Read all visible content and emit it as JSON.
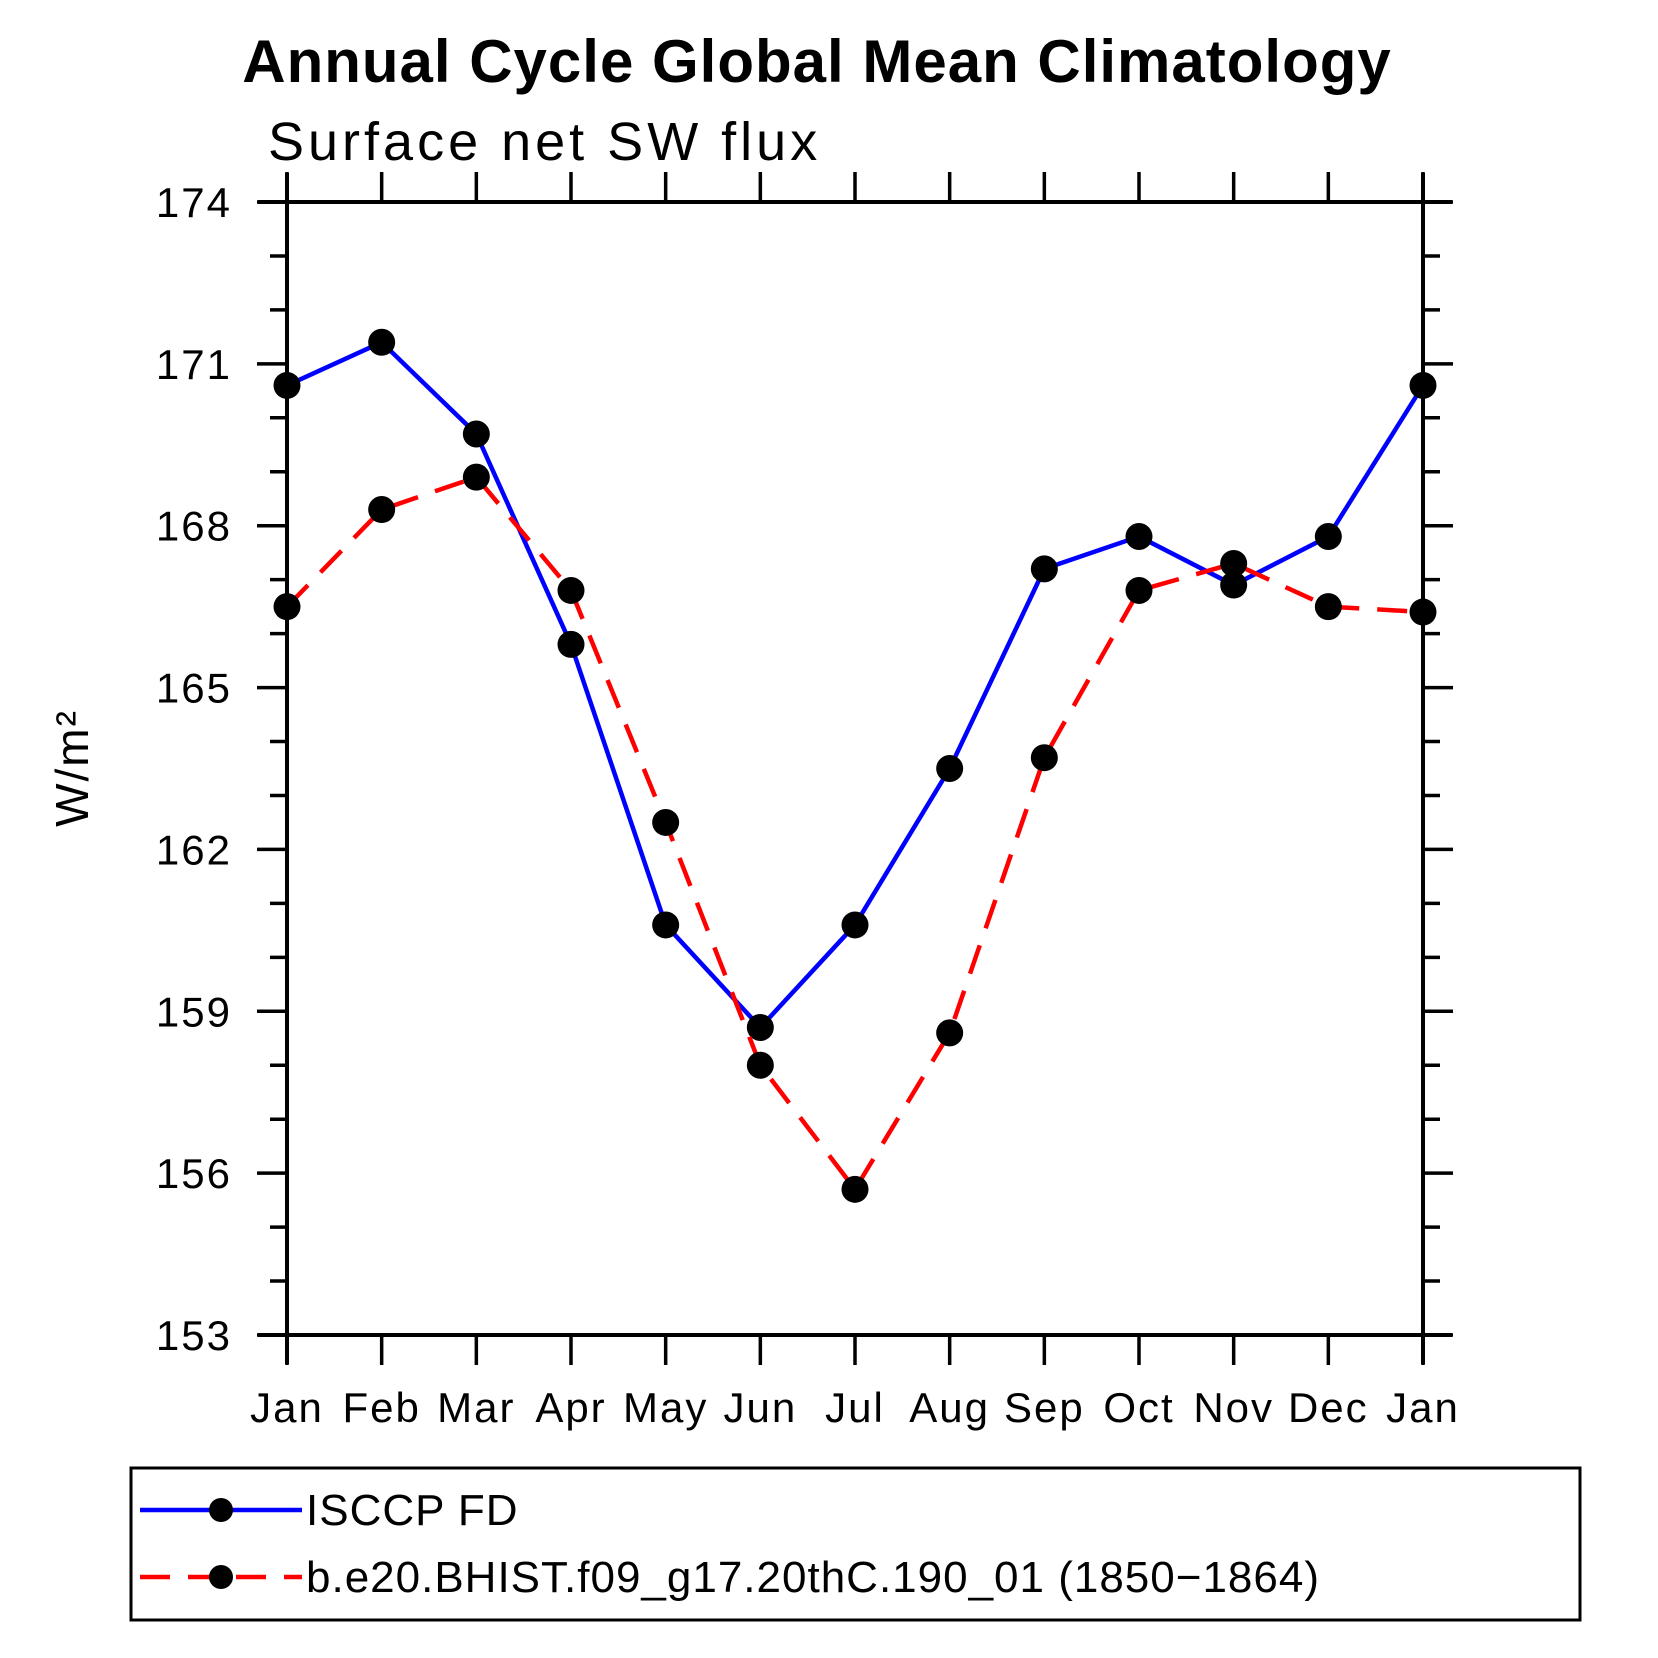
{
  "title": "Annual Cycle Global Mean Climatology",
  "subtitle": "Surface net SW flux",
  "chart_data": {
    "type": "line",
    "title": "Annual Cycle Global Mean Climatology",
    "subtitle": "Surface net SW flux",
    "xlabel": "",
    "ylabel": "W/m²",
    "categories": [
      "Jan",
      "Feb",
      "Mar",
      "Apr",
      "May",
      "Jun",
      "Jul",
      "Aug",
      "Sep",
      "Oct",
      "Nov",
      "Dec",
      "Jan"
    ],
    "ylim": [
      153,
      174
    ],
    "ytick_labels": [
      "153",
      "156",
      "159",
      "162",
      "165",
      "168",
      "171",
      "174"
    ],
    "ytick_major_step": 3,
    "ytick_minor_step": 1,
    "grid": false,
    "legend_position": "bottom",
    "background_color": "#ffffff",
    "axis_color": "#000000",
    "marker_color": "#000000",
    "series": [
      {
        "name": "ISCCP FD",
        "color": "#0000ff",
        "line_style": "solid",
        "marker": "circle",
        "values": [
          170.6,
          171.4,
          169.7,
          165.8,
          160.6,
          158.7,
          160.6,
          163.5,
          167.2,
          167.8,
          166.9,
          167.8,
          170.6
        ]
      },
      {
        "name": "b.e20.BHIST.f09_g17.20thC.190_01 (1850−1864)",
        "color": "#ff0000",
        "line_style": "dashed",
        "marker": "circle",
        "values": [
          166.5,
          168.3,
          168.9,
          166.8,
          162.5,
          158.0,
          155.7,
          158.6,
          163.7,
          166.8,
          167.3,
          166.5,
          166.4
        ]
      }
    ]
  }
}
